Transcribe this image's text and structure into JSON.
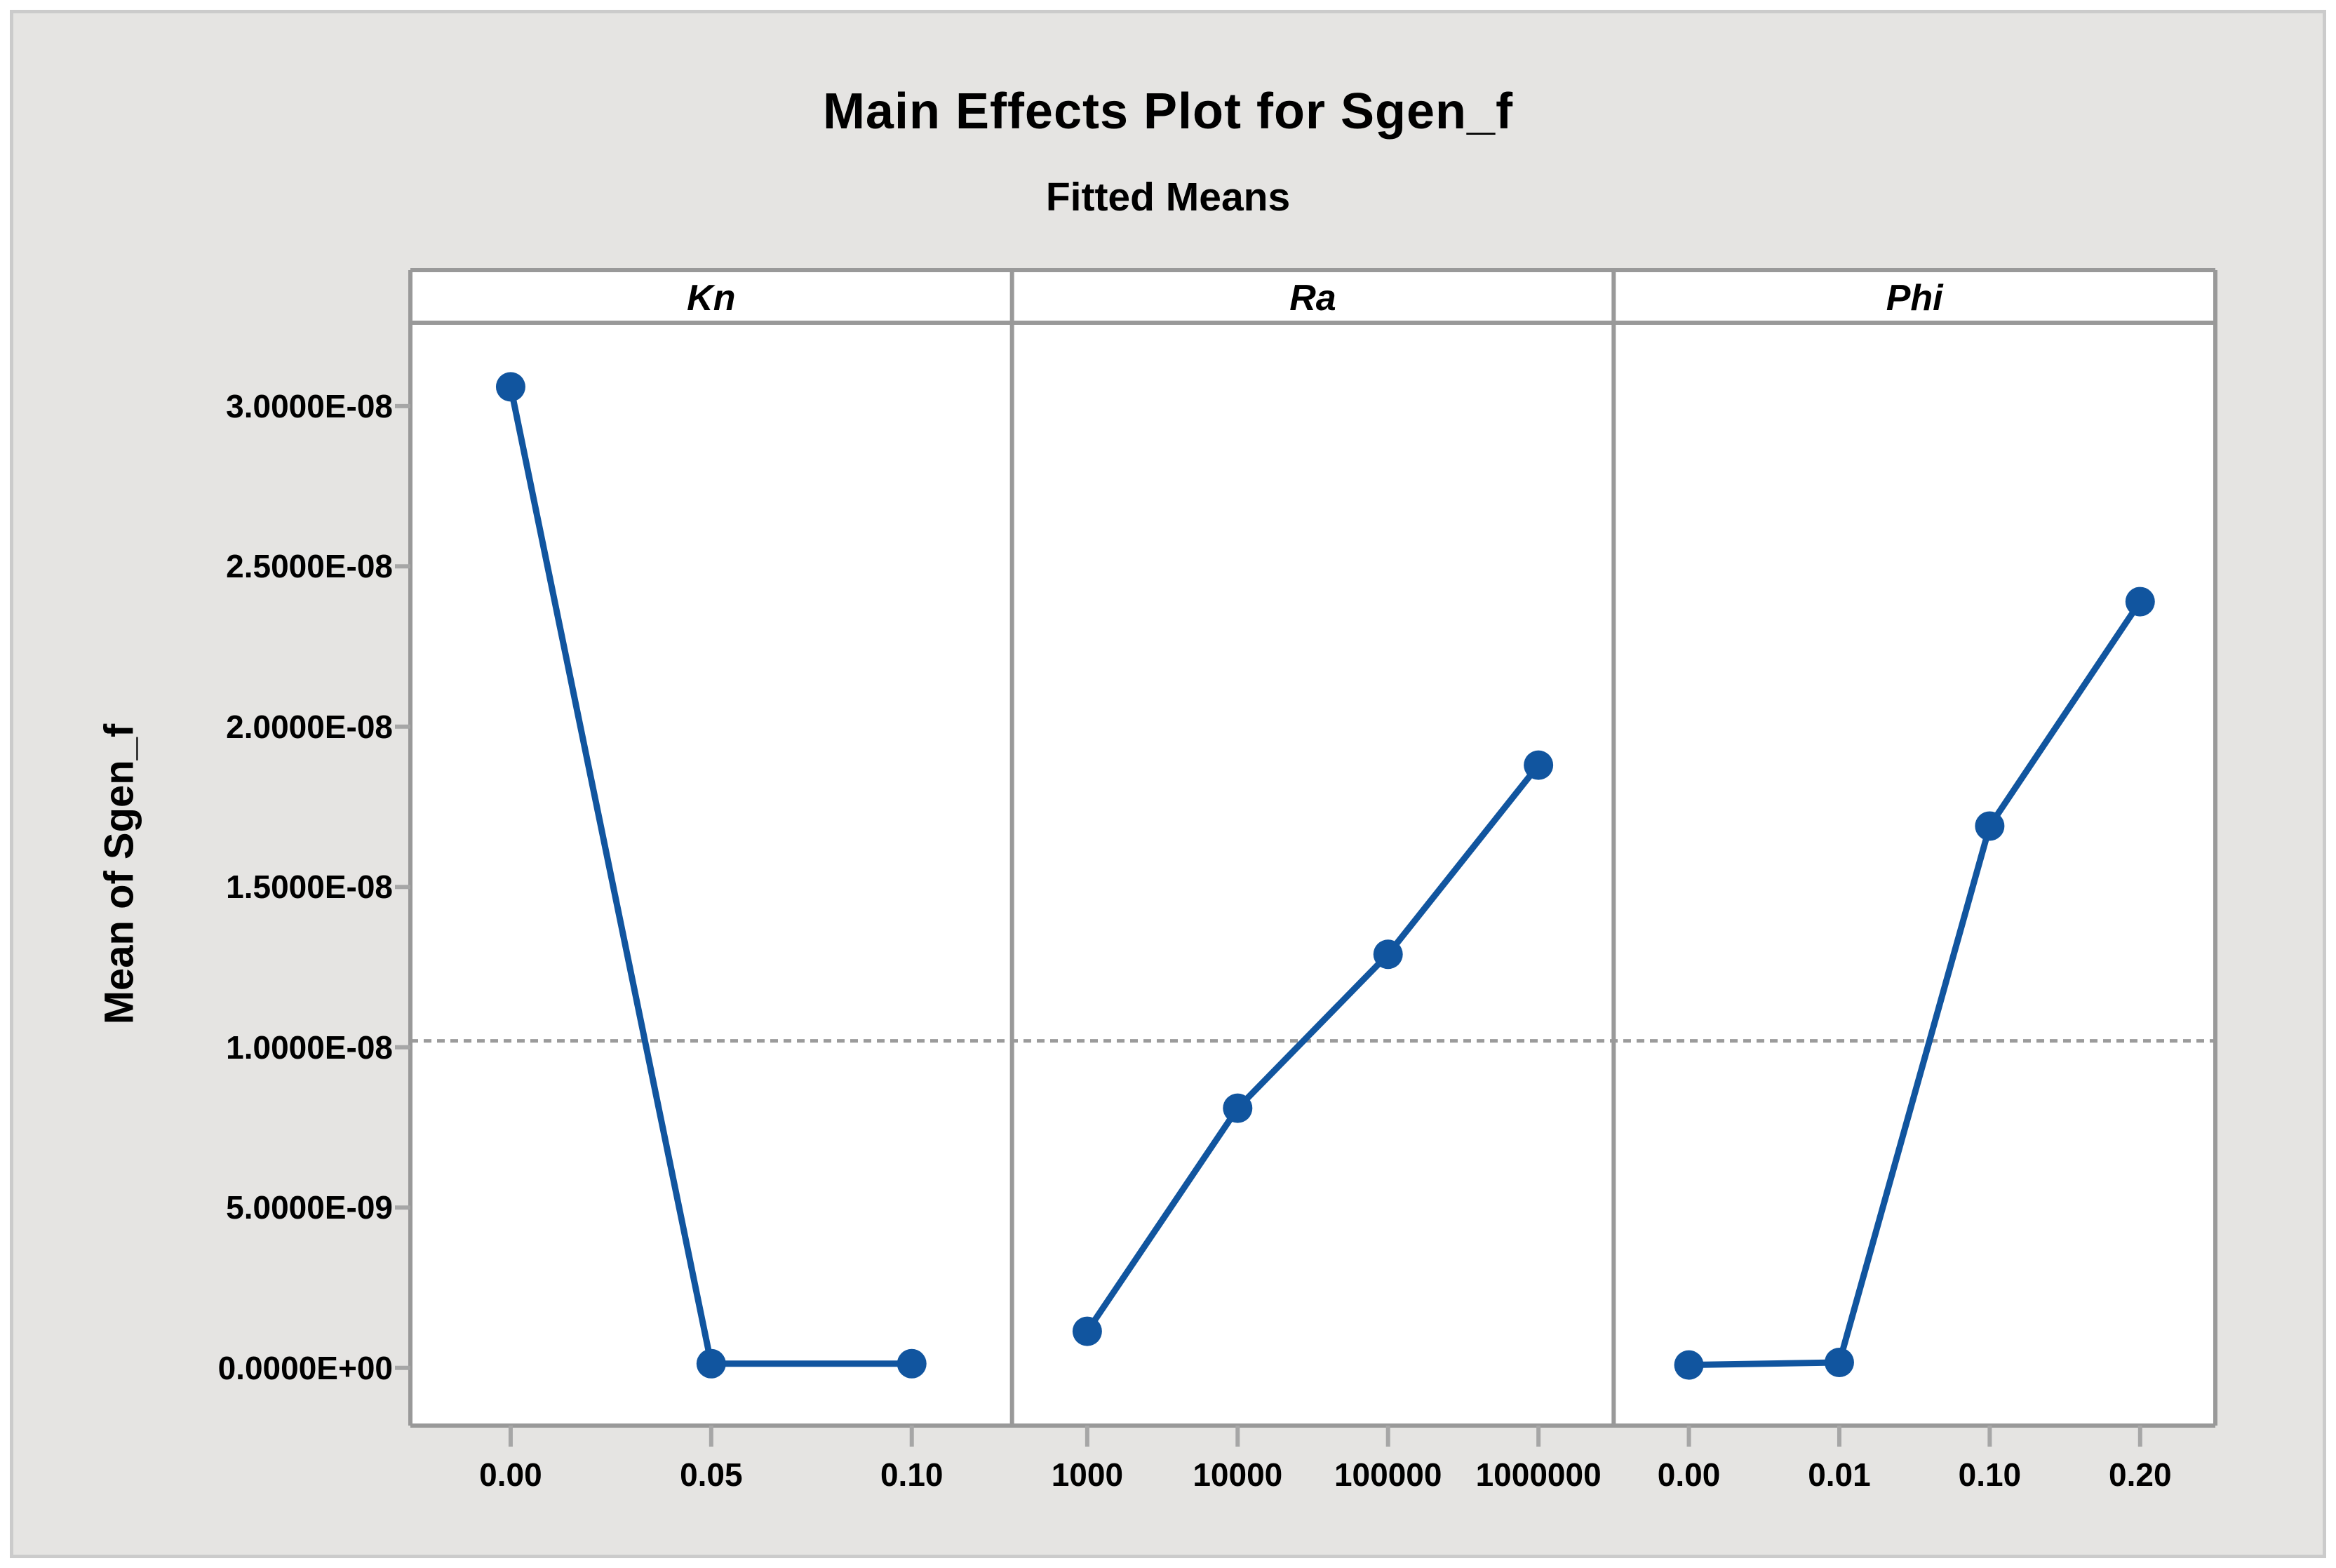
{
  "figure": {
    "title": "Main Effects Plot for Sgen_f",
    "subtitle": "Fitted Means",
    "y_axis_title": "Mean of Sgen_f"
  },
  "colors": {
    "series": "#11559F",
    "panel_border": "#999999",
    "tick_mark": "#A6A6A6",
    "reference_line": "#9B9B9B",
    "canvas_bg": "#E5E4E2",
    "plot_bg": "#FFFFFF",
    "frame_border": "#CBCBCB",
    "text": "#000000"
  },
  "chart_data": {
    "type": "line",
    "title": "Main Effects Plot for Sgen_f",
    "subtitle": "Fitted Means",
    "ylabel": "Mean of Sgen_f",
    "xlabel": "",
    "ylim": [
      -1.8e-09,
      3.26e-08
    ],
    "grid": false,
    "legend": false,
    "marker": "circle",
    "yticks": [
      {
        "label": "0.0000E+00",
        "value": 0
      },
      {
        "label": "5.0000E-09",
        "value": 5e-09
      },
      {
        "label": "1.0000E-08",
        "value": 1e-08
      },
      {
        "label": "1.5000E-08",
        "value": 1.5e-08
      },
      {
        "label": "2.0000E-08",
        "value": 2e-08
      },
      {
        "label": "2.5000E-08",
        "value": 2.5e-08
      },
      {
        "label": "3.0000E-08",
        "value": 3e-08
      }
    ],
    "reference_line_value": 1.02e-08,
    "panels": [
      {
        "label": "Kn",
        "categories": [
          "0.00",
          "0.05",
          "0.10"
        ],
        "values": [
          3.06e-08,
          1.3e-10,
          1.3e-10
        ]
      },
      {
        "label": "Ra",
        "categories": [
          "1000",
          "10000",
          "100000",
          "1000000"
        ],
        "values": [
          1.14e-09,
          8.1e-09,
          1.29e-08,
          1.88e-08
        ]
      },
      {
        "label": "Phi",
        "categories": [
          "0.00",
          "0.01",
          "0.10",
          "0.20"
        ],
        "values": [
          9e-11,
          1.7e-10,
          1.69e-08,
          2.39e-08
        ]
      }
    ]
  }
}
